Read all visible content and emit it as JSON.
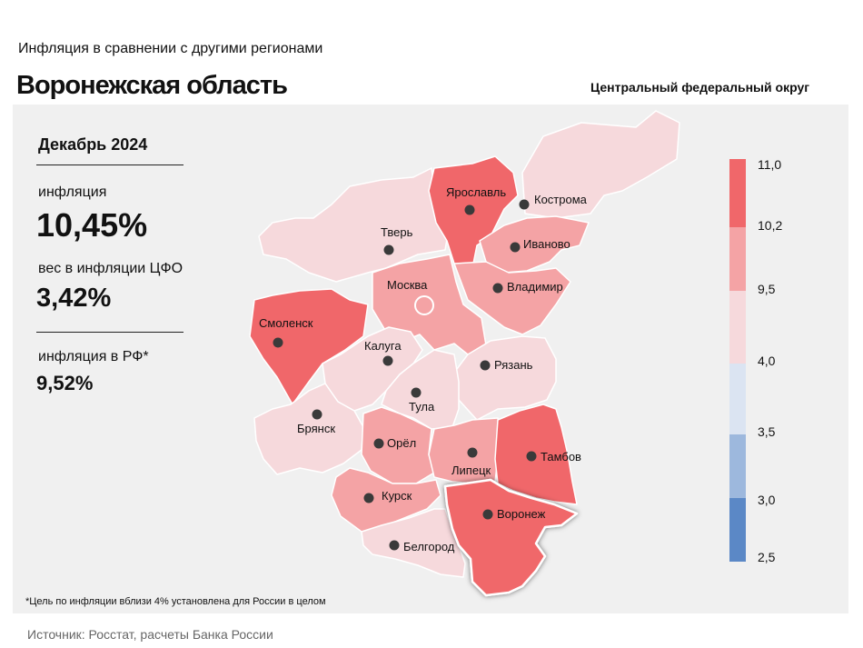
{
  "header": {
    "supertitle": "Инфляция  в сравнении  с другими  регионами",
    "title": "Воронежская область",
    "district": "Центральный федеральный округ"
  },
  "stats": {
    "period": "Декабрь 2024",
    "inflation_label": "инфляция",
    "inflation_value": "10,45%",
    "weight_label": "вес в инфляции  ЦФО",
    "weight_value": "3,42%",
    "rf_label": "инфляция  в РФ*",
    "rf_value": "9,52%"
  },
  "legend": {
    "bins": [
      {
        "from": 10.2,
        "to": 11.0,
        "color": "#f0676a"
      },
      {
        "from": 9.5,
        "to": 10.2,
        "color": "#f4a3a5"
      },
      {
        "from": 4.0,
        "to": 9.5,
        "color": "#f6d9dc"
      },
      {
        "from": 3.5,
        "to": 4.0,
        "color": "#dbe4f2"
      },
      {
        "from": 3.0,
        "to": 3.5,
        "color": "#9db8dd"
      },
      {
        "from": 2.5,
        "to": 3.0,
        "color": "#5b88c6"
      }
    ],
    "tick_labels": [
      "11,0",
      "10,2",
      "9,5",
      "4,0",
      "3,5",
      "3,0",
      "2,5"
    ]
  },
  "regions": [
    {
      "name": "Кострома",
      "level": "4.0-9.5",
      "color": "#f6d9dc"
    },
    {
      "name": "Тверь",
      "level": "4.0-9.5",
      "color": "#f6d9dc"
    },
    {
      "name": "Ярославль",
      "level": "10.2-11.0",
      "color": "#f0676a"
    },
    {
      "name": "Иваново",
      "level": "9.5-10.2",
      "color": "#f4a3a5"
    },
    {
      "name": "Москва",
      "level": "9.5-10.2",
      "color": "#f4a3a5"
    },
    {
      "name": "Владимир",
      "level": "9.5-10.2",
      "color": "#f4a3a5"
    },
    {
      "name": "Смоленск",
      "level": "10.2-11.0",
      "color": "#f0676a"
    },
    {
      "name": "Калуга",
      "level": "4.0-9.5",
      "color": "#f6d9dc"
    },
    {
      "name": "Рязань",
      "level": "4.0-9.5",
      "color": "#f6d9dc"
    },
    {
      "name": "Тула",
      "level": "4.0-9.5",
      "color": "#f6d9dc"
    },
    {
      "name": "Брянск",
      "level": "4.0-9.5",
      "color": "#f6d9dc"
    },
    {
      "name": "Орёл",
      "level": "9.5-10.2",
      "color": "#f4a3a5"
    },
    {
      "name": "Липецк",
      "level": "9.5-10.2",
      "color": "#f4a3a5"
    },
    {
      "name": "Тамбов",
      "level": "10.2-11.0",
      "color": "#f0676a"
    },
    {
      "name": "Курск",
      "level": "9.5-10.2",
      "color": "#f4a3a5"
    },
    {
      "name": "Воронеж",
      "level": "10.2-11.0",
      "color": "#f0676a",
      "highlighted": true
    },
    {
      "name": "Белгород",
      "level": "4.0-9.5",
      "color": "#f6d9dc"
    }
  ],
  "footnote": "*Цель по инфляции вблизи 4% установлена для России в целом",
  "source": "Источник: Росстат, расчеты Банка России"
}
